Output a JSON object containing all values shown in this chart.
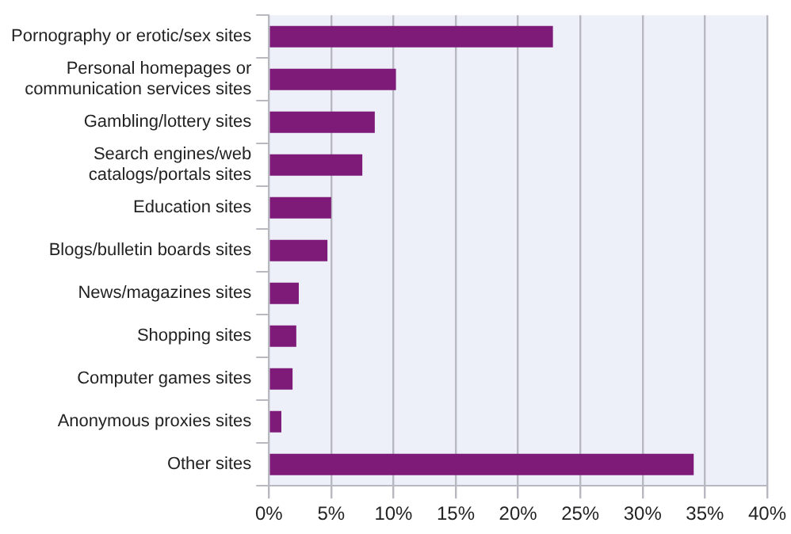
{
  "chart_data": {
    "type": "bar",
    "orientation": "horizontal",
    "categories": [
      "Pornography or erotic/sex sites",
      "Personal homepages or communication services sites",
      "Gambling/lottery sites",
      "Search engines/web catalogs/portals sites",
      "Education sites",
      "Blogs/bulletin boards sites",
      "News/magazines sites",
      "Shopping sites",
      "Computer games sites",
      "Anonymous proxies sites",
      "Other sites"
    ],
    "values": [
      22.8,
      10.2,
      8.5,
      7.5,
      5.0,
      4.7,
      2.4,
      2.2,
      1.9,
      1.0,
      34.1
    ],
    "color": "#7e1a78",
    "xlim": [
      0,
      40
    ],
    "xticks": [
      {
        "value": 0,
        "label": "0%"
      },
      {
        "value": 5,
        "label": "5%"
      },
      {
        "value": 10,
        "label": "10%"
      },
      {
        "value": 15,
        "label": "15%"
      },
      {
        "value": 20,
        "label": "20%"
      },
      {
        "value": 25,
        "label": "25%"
      },
      {
        "value": 30,
        "label": "30%"
      },
      {
        "value": 35,
        "label": "35%"
      },
      {
        "value": 40,
        "label": "40%"
      }
    ],
    "grid": "x",
    "legend": false
  }
}
